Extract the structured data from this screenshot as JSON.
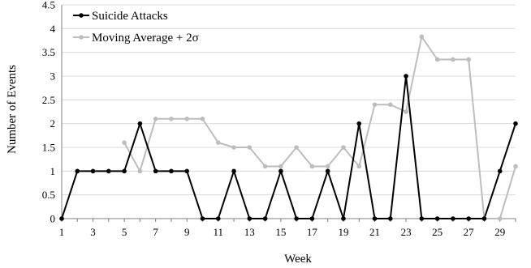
{
  "chart_data": {
    "type": "line",
    "title": "",
    "xlabel": "Week",
    "ylabel": "Number of Events",
    "xlim": [
      1,
      30
    ],
    "ylim": [
      0,
      4.5
    ],
    "x_ticks": [
      "1",
      "3",
      "5",
      "7",
      "9",
      "11",
      "13",
      "15",
      "17",
      "19",
      "21",
      "23",
      "25",
      "27",
      "29"
    ],
    "y_ticks": [
      "0",
      "0.5",
      "1",
      "1.5",
      "2",
      "2.5",
      "3",
      "3.5",
      "4",
      "4.5"
    ],
    "grid": "horizontal",
    "legend_position": "top-left",
    "series": [
      {
        "name": "Suicide Attacks",
        "color": "#000000",
        "x": [
          1,
          2,
          3,
          4,
          5,
          6,
          7,
          8,
          9,
          10,
          11,
          12,
          13,
          14,
          15,
          16,
          17,
          18,
          19,
          20,
          21,
          22,
          23,
          24,
          25,
          26,
          27,
          28,
          29,
          30
        ],
        "values": [
          0,
          1,
          1,
          1,
          1,
          2,
          1,
          1,
          1,
          0,
          0,
          1,
          0,
          0,
          1,
          0,
          0,
          1,
          0,
          2,
          0,
          0,
          3,
          0,
          0,
          0,
          0,
          0,
          1,
          2
        ]
      },
      {
        "name": "Moving Average + 2σ",
        "color": "#bdbdbd",
        "x": [
          5,
          6,
          7,
          8,
          9,
          10,
          11,
          12,
          13,
          14,
          15,
          16,
          17,
          18,
          19,
          20,
          21,
          22,
          23,
          24,
          25,
          26,
          27,
          28,
          29,
          30
        ],
        "values": [
          1.6,
          1.0,
          2.1,
          2.1,
          2.1,
          2.1,
          1.6,
          1.5,
          1.5,
          1.1,
          1.1,
          1.5,
          1.1,
          1.1,
          1.5,
          1.1,
          2.4,
          2.4,
          2.25,
          3.83,
          3.35,
          3.35,
          3.35,
          0,
          0,
          1.1
        ]
      }
    ]
  }
}
